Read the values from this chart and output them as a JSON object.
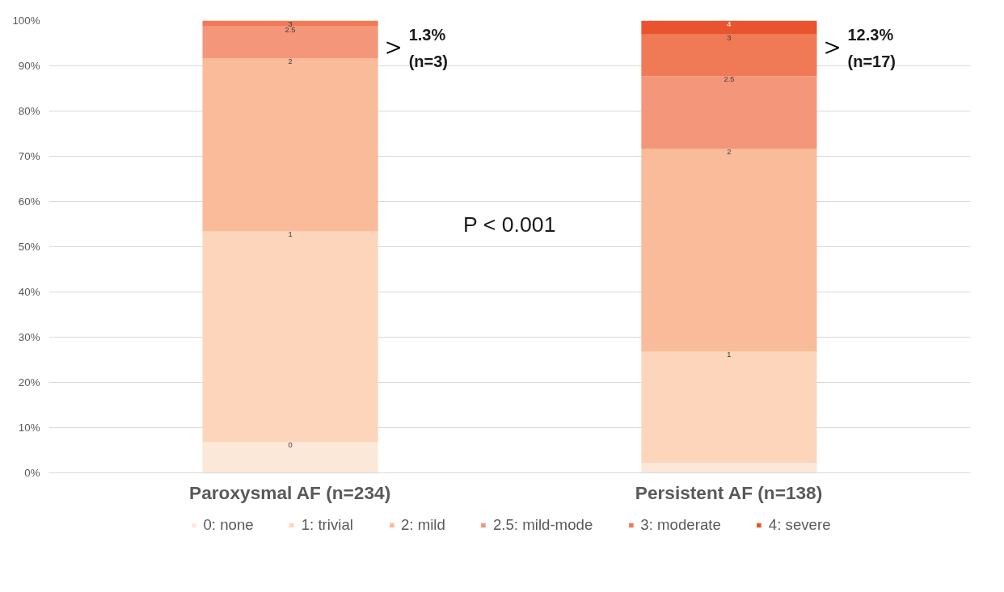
{
  "chart_data": {
    "type": "bar",
    "stacked": true,
    "categories": [
      "Paroxysmal AF (n=234)",
      "Persistent AF (n=138)"
    ],
    "series": [
      {
        "name": "0: none",
        "color": "#fce8d9",
        "values": [
          6.8,
          2.2
        ]
      },
      {
        "name": "1: trivial",
        "color": "#fcd5bb",
        "values": [
          46.6,
          24.6
        ]
      },
      {
        "name": "2: mild",
        "color": "#f9bb9a",
        "values": [
          38.3,
          44.9
        ]
      },
      {
        "name": "2.5: mild-mode",
        "color": "#f4967a",
        "values": [
          7.0,
          16.0
        ]
      },
      {
        "name": "3: moderate",
        "color": "#f07a55",
        "values": [
          1.3,
          9.2
        ]
      },
      {
        "name": "4: severe",
        "color": "#e8542f",
        "values": [
          0,
          3.1
        ]
      }
    ],
    "ylim": [
      0,
      100
    ],
    "yticks": [
      {
        "value": 0,
        "label": "0%"
      },
      {
        "value": 10,
        "label": "10%"
      },
      {
        "value": 20,
        "label": "20%"
      },
      {
        "value": 30,
        "label": "30%"
      },
      {
        "value": 40,
        "label": "40%"
      },
      {
        "value": 50,
        "label": "50%"
      },
      {
        "value": 60,
        "label": "60%"
      },
      {
        "value": 70,
        "label": "70%"
      },
      {
        "value": 80,
        "label": "80%"
      },
      {
        "value": 90,
        "label": "90%"
      },
      {
        "value": 100,
        "label": "100%"
      }
    ],
    "grid": "y",
    "legend": "bottom",
    "annotations": [
      "1.3%\n(n=3)",
      "12.3%\n(n=17)",
      "P < 0.001",
      {
        "text": "0",
        "x": "Paroxysmal AF (n=234)",
        "y": 6.8
      },
      {
        "text": "1",
        "x": "Paroxysmal AF (n=234)",
        "y": 53.4
      },
      {
        "text": "2",
        "x": "Paroxysmal AF (n=234)",
        "y": 91.7
      },
      {
        "text": "2.5",
        "x": "Paroxysmal AF (n=234)",
        "y": 98.7
      },
      {
        "text": "3",
        "x": "Paroxysmal AF (n=234)",
        "y": 100
      },
      {
        "text": "1",
        "x": "Persistent AF (n=138)",
        "y": 26.8
      },
      {
        "text": "2",
        "x": "Persistent AF (n=138)",
        "y": 71.7
      },
      {
        "text": "2.5",
        "x": "Persistent AF (n=138)",
        "y": 87.7
      },
      {
        "text": "3",
        "x": "Persistent AF (n=138)",
        "y": 96.9
      },
      {
        "text": "4",
        "x": "Persistent AF (n=138)",
        "y": 100
      }
    ]
  }
}
